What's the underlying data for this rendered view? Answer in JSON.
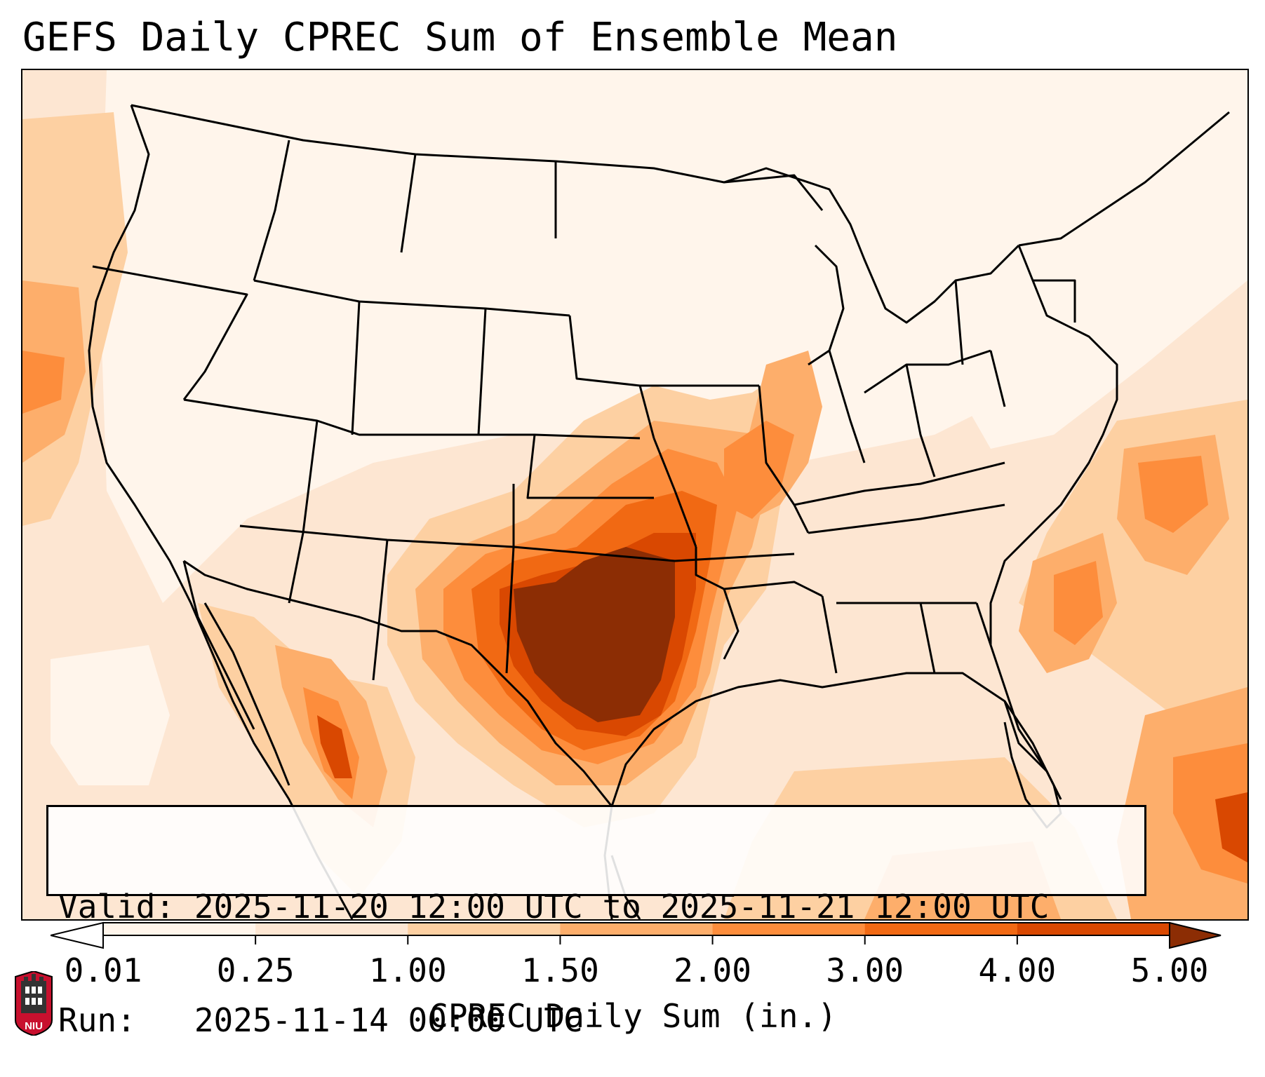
{
  "title": "GEFS Daily CPREC Sum of Ensemble Mean",
  "info": {
    "valid_line": "Valid: 2025-11-20 12:00 UTC to 2025-11-21 12:00 UTC",
    "run_line": "Run:   2025-11-14 00:00 UTC"
  },
  "colorbar": {
    "label": "CPREC Daily Sum (in.)",
    "ticks": [
      "0.01",
      "0.25",
      "1.00",
      "1.50",
      "2.00",
      "3.00",
      "4.00",
      "5.00"
    ],
    "colors": [
      "#fff5eb",
      "#fde6d2",
      "#fdd0a2",
      "#fdae6b",
      "#fd8d3c",
      "#f16913",
      "#d94801",
      "#8c2d04"
    ],
    "under_color": "#ffffff",
    "over_color": "#8c2d04"
  },
  "logo": {
    "text": "NIU",
    "color": "#c8102e"
  }
}
